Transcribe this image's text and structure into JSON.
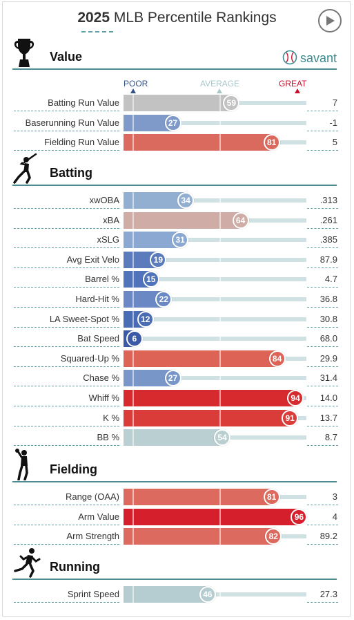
{
  "header": {
    "year": "2025",
    "title": "MLB Percentile Rankings"
  },
  "brand": {
    "name": "savant",
    "color": "#3a8a8f"
  },
  "scale": {
    "poor": "POOR",
    "average": "AVERAGE",
    "great": "GREAT",
    "poor_color": "#33528a",
    "average_color": "#a9c6c9",
    "great_color": "#c8102e"
  },
  "sections": [
    {
      "key": "value",
      "name": "Value",
      "icon": "trophy-icon",
      "rows": [
        {
          "label": "Batting Run Value",
          "pct": 59,
          "value": "7",
          "color": "#c2c2c2"
        },
        {
          "label": "Baserunning Run Value",
          "pct": 27,
          "value": "-1",
          "color": "#7f99c8"
        },
        {
          "label": "Fielding Run Value",
          "pct": 81,
          "value": "5",
          "color": "#db6a5e"
        }
      ]
    },
    {
      "key": "batting",
      "name": "Batting",
      "icon": "batter-icon",
      "rows": [
        {
          "label": "xwOBA",
          "pct": 34,
          "value": ".313",
          "color": "#92aed0"
        },
        {
          "label": "xBA",
          "pct": 64,
          "value": ".261",
          "color": "#cfaca6"
        },
        {
          "label": "xSLG",
          "pct": 31,
          "value": ".385",
          "color": "#8aa8d2"
        },
        {
          "label": "Avg Exit Velo",
          "pct": 19,
          "value": "87.9",
          "color": "#5b7bbd"
        },
        {
          "label": "Barrel %",
          "pct": 15,
          "value": "4.7",
          "color": "#5173ba"
        },
        {
          "label": "Hard-Hit %",
          "pct": 22,
          "value": "36.8",
          "color": "#6a88c4"
        },
        {
          "label": "LA Sweet-Spot %",
          "pct": 12,
          "value": "30.8",
          "color": "#4a6cb4"
        },
        {
          "label": "Bat Speed",
          "pct": 6,
          "value": "68.0",
          "color": "#3a5aa6"
        },
        {
          "label": "Squared-Up %",
          "pct": 84,
          "value": "29.9",
          "color": "#dd6356"
        },
        {
          "label": "Chase %",
          "pct": 27,
          "value": "31.4",
          "color": "#7996c8"
        },
        {
          "label": "Whiff %",
          "pct": 94,
          "value": "14.0",
          "color": "#d62a2e"
        },
        {
          "label": "K %",
          "pct": 91,
          "value": "13.7",
          "color": "#da3c3a"
        },
        {
          "label": "BB %",
          "pct": 54,
          "value": "8.7",
          "color": "#b9cfd1"
        }
      ]
    },
    {
      "key": "fielding",
      "name": "Fielding",
      "icon": "fielder-icon",
      "rows": [
        {
          "label": "Range (OAA)",
          "pct": 81,
          "value": "3",
          "color": "#dc6a5e"
        },
        {
          "label": "Arm Value",
          "pct": 96,
          "value": "4",
          "color": "#d61f2c"
        },
        {
          "label": "Arm Strength",
          "pct": 82,
          "value": "89.2",
          "color": "#dc6a5e"
        }
      ]
    },
    {
      "key": "running",
      "name": "Running",
      "icon": "runner-icon",
      "rows": [
        {
          "label": "Sprint Speed",
          "pct": 46,
          "value": "27.3",
          "color": "#b5cdd0"
        }
      ]
    }
  ]
}
